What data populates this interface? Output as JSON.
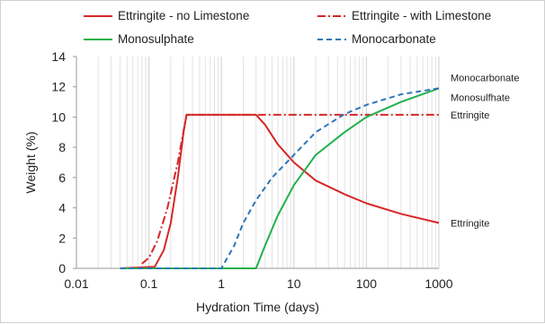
{
  "chart_data": {
    "type": "line",
    "xlabel": "Hydration Time (days)",
    "ylabel": "Weight (%)",
    "xscale": "log",
    "xlim": [
      0.01,
      1000
    ],
    "ylim": [
      0,
      14
    ],
    "x_ticks": [
      "0.01",
      "0.1",
      "1",
      "10",
      "100",
      "1000"
    ],
    "y_ticks": [
      "0",
      "2",
      "4",
      "6",
      "8",
      "10",
      "12",
      "14"
    ],
    "grid": "vertical minor log gridlines",
    "legend_position": "top, two columns",
    "series": [
      {
        "name": "Ettringite - no Limestone",
        "color": "#d62728",
        "dash": "solid",
        "points": [
          [
            0.04,
            0
          ],
          [
            0.12,
            0.1
          ],
          [
            0.16,
            1.2
          ],
          [
            0.2,
            3
          ],
          [
            0.25,
            6
          ],
          [
            0.3,
            9
          ],
          [
            0.33,
            10.15
          ],
          [
            3,
            10.15
          ],
          [
            4,
            9.5
          ],
          [
            6,
            8.2
          ],
          [
            10,
            7
          ],
          [
            20,
            5.8
          ],
          [
            50,
            4.9
          ],
          [
            100,
            4.3
          ],
          [
            300,
            3.6
          ],
          [
            1000,
            3.0
          ]
        ]
      },
      {
        "name": "Ettringite - with Limestone",
        "color": "#d62728",
        "dash": "dashdot",
        "points": [
          [
            0.08,
            0.3
          ],
          [
            0.1,
            0.7
          ],
          [
            0.13,
            1.8
          ],
          [
            0.18,
            4
          ],
          [
            0.25,
            7
          ],
          [
            0.33,
            10.15
          ],
          [
            1000,
            10.15
          ]
        ]
      },
      {
        "name": "Monosulphate",
        "color": "#22b14c",
        "dash": "solid",
        "points": [
          [
            0.04,
            0
          ],
          [
            3,
            0
          ],
          [
            4,
            1.5
          ],
          [
            6,
            3.5
          ],
          [
            10,
            5.5
          ],
          [
            20,
            7.5
          ],
          [
            50,
            9
          ],
          [
            100,
            10
          ],
          [
            300,
            11
          ],
          [
            1000,
            11.9
          ]
        ]
      },
      {
        "name": "Monocarbonate",
        "color": "#2e75b6",
        "dash": "dashed",
        "points": [
          [
            0.04,
            0
          ],
          [
            1,
            0
          ],
          [
            1.5,
            1.5
          ],
          [
            2,
            3
          ],
          [
            3,
            4.5
          ],
          [
            5,
            6
          ],
          [
            10,
            7.5
          ],
          [
            20,
            9
          ],
          [
            50,
            10.2
          ],
          [
            100,
            10.8
          ],
          [
            300,
            11.5
          ],
          [
            1000,
            11.9
          ]
        ]
      }
    ],
    "annotations": [
      {
        "text": "Monocarbonate",
        "x": 1000,
        "y": 12.6
      },
      {
        "text": "Monosulfhate",
        "x": 1000,
        "y": 11.3
      },
      {
        "text": "Ettringite",
        "x": 1000,
        "y": 10.15
      },
      {
        "text": "Ettringite",
        "x": 1000,
        "y": 3.0
      }
    ]
  }
}
